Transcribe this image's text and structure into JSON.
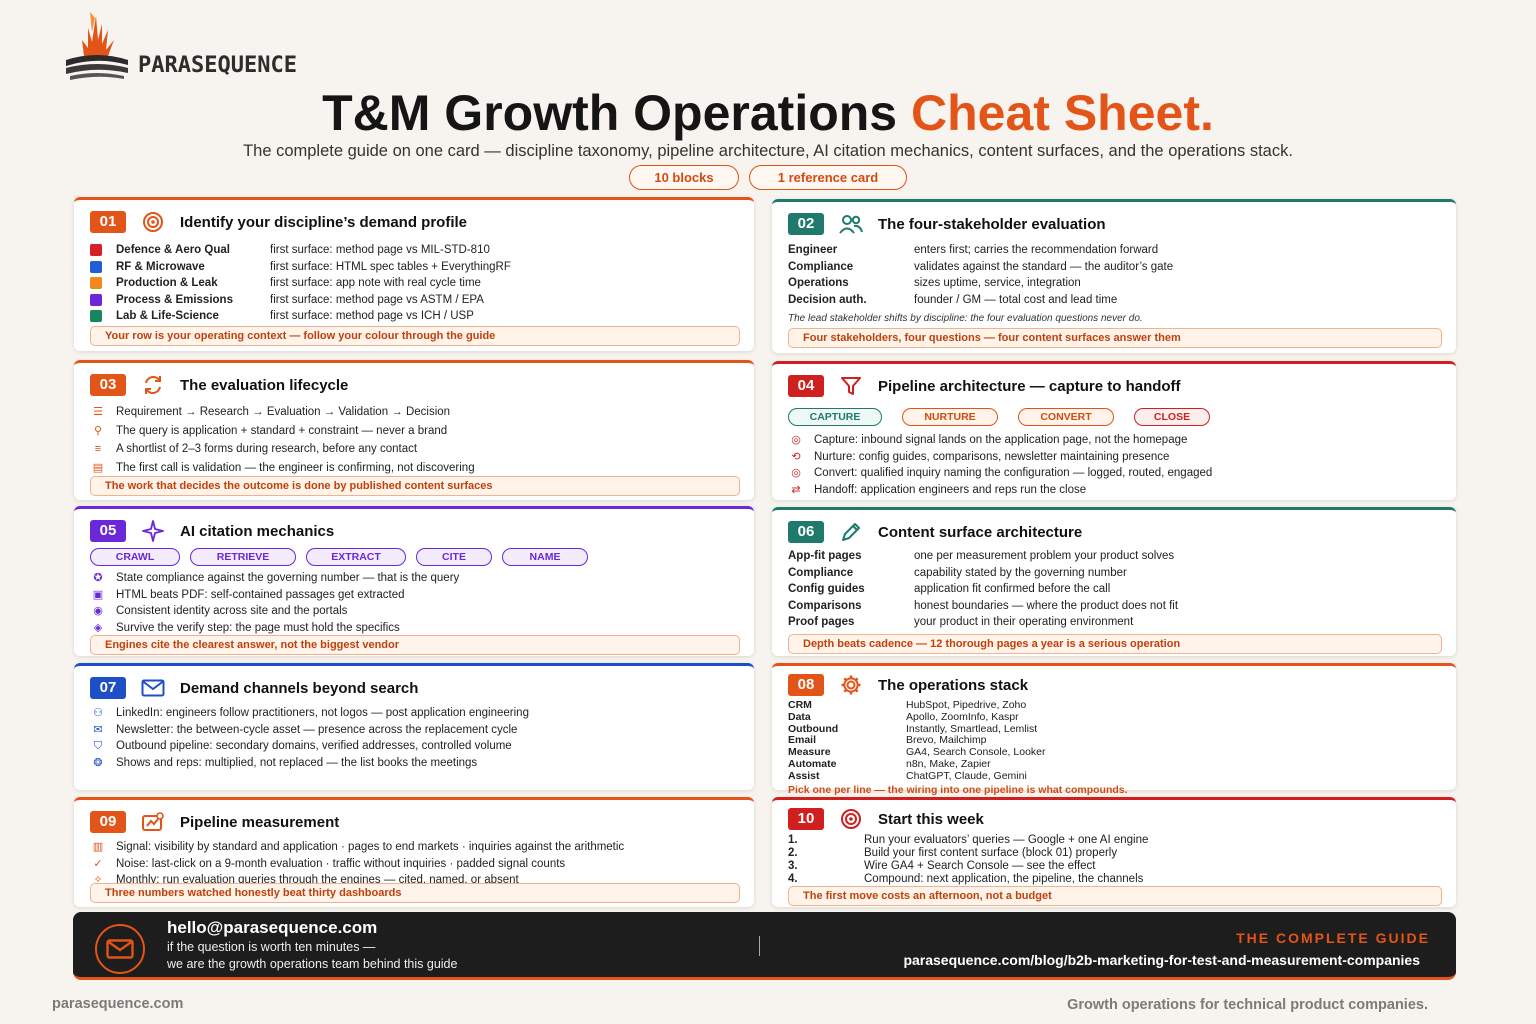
{
  "brand": {
    "name": "PARASEQUENCE"
  },
  "header": {
    "title_main": "T&M Growth Operations",
    "title_accent": "Cheat Sheet.",
    "subtitle": "The complete guide on one card — discipline taxonomy, pipeline architecture, AI citation mechanics, content surfaces, and the operations stack.",
    "pills": [
      "10 blocks",
      "1 reference card"
    ]
  },
  "colors": {
    "accent": "#e25417",
    "teal": "#1f7a6d",
    "purple": "#6a28d8",
    "blue": "#1e4fc7",
    "red": "#d01f1f"
  },
  "blocks": {
    "b01": {
      "num": "01",
      "title": "Identify your discipline’s demand profile",
      "rows": [
        {
          "k": "Defence & Aero Qual",
          "v": "first surface: method page vs MIL-STD-810",
          "color": "#d61f26"
        },
        {
          "k": "RF & Microwave",
          "v": "first surface: HTML spec tables + EverythingRF",
          "color": "#1f5fd6"
        },
        {
          "k": "Production & Leak",
          "v": "first surface: app note with real cycle time",
          "color": "#f08a1c"
        },
        {
          "k": "Process & Emissions",
          "v": "first surface: method page vs ASTM / EPA",
          "color": "#6a28d8"
        },
        {
          "k": "Lab & Life-Science",
          "v": "first surface: method page vs ICH / USP",
          "color": "#17855e"
        }
      ],
      "callout": "Your row is your operating context — follow your colour through the guide"
    },
    "b02": {
      "num": "02",
      "title": "The four-stakeholder evaluation",
      "rows": [
        {
          "k": "Engineer",
          "v": "enters first; carries the recommendation forward"
        },
        {
          "k": "Compliance",
          "v": "validates against the standard — the auditor’s gate"
        },
        {
          "k": "Operations",
          "v": "sizes uptime, service, integration"
        },
        {
          "k": "Decision auth.",
          "v": "founder / GM — total cost and lead time"
        }
      ],
      "note": "The lead stakeholder shifts by discipline: the four evaluation questions never do.",
      "callout": "Four stakeholders, four questions — four content surfaces answer them"
    },
    "b03": {
      "num": "03",
      "title": "The evaluation lifecycle",
      "rows": [
        "Requirement → Research → Evaluation → Validation → Decision",
        "The query is application + standard + constraint — never a brand",
        "A shortlist of 2–3 forms during research, before any contact",
        "The first call is validation — the engineer is confirming, not discovering"
      ],
      "callout": "The work that decides the outcome is done by published content surfaces"
    },
    "b04": {
      "num": "04",
      "title": "Pipeline architecture — capture to handoff",
      "chips": [
        "CAPTURE",
        "NURTURE",
        "CONVERT",
        "CLOSE"
      ],
      "rows": [
        "Capture: inbound signal lands on the application page, not the homepage",
        "Nurture: config guides, comparisons, newsletter maintaining presence",
        "Convert: qualified inquiry naming the configuration — logged, routed, engaged",
        "Handoff: application engineers and reps run the close"
      ]
    },
    "b05": {
      "num": "05",
      "title": "AI citation mechanics",
      "chips": [
        "CRAWL",
        "RETRIEVE",
        "EXTRACT",
        "CITE",
        "NAME"
      ],
      "rows": [
        "State compliance against the governing number — that is the query",
        "HTML beats PDF: self-contained passages get extracted",
        "Consistent identity across site and the portals",
        "Survive the verify step: the page must hold the specifics"
      ],
      "callout": "Engines cite the clearest answer, not the biggest vendor"
    },
    "b06": {
      "num": "06",
      "title": "Content surface architecture",
      "rows": [
        {
          "k": "App-fit pages",
          "v": "one per measurement problem your product solves"
        },
        {
          "k": "Compliance",
          "v": "capability stated by the governing number"
        },
        {
          "k": "Config guides",
          "v": "application fit confirmed before the call"
        },
        {
          "k": "Comparisons",
          "v": "honest boundaries — where the product does not fit"
        },
        {
          "k": "Proof pages",
          "v": "your product in their operating environment"
        }
      ],
      "callout": "Depth beats cadence — 12 thorough pages a year is a serious operation"
    },
    "b07": {
      "num": "07",
      "title": "Demand channels beyond search",
      "rows": [
        "LinkedIn: engineers follow practitioners, not logos — post application engineering",
        "Newsletter: the between-cycle asset — presence across the replacement cycle",
        "Outbound pipeline: secondary domains, verified addresses, controlled volume",
        "Shows and reps: multiplied, not replaced — the list books the meetings"
      ]
    },
    "b08": {
      "num": "08",
      "title": "The operations stack",
      "rows": [
        {
          "k": "CRM",
          "v": "HubSpot, Pipedrive, Zoho"
        },
        {
          "k": "Data",
          "v": "Apollo, ZoomInfo, Kaspr"
        },
        {
          "k": "Outbound",
          "v": "Instantly, Smartlead, Lemlist"
        },
        {
          "k": "Email",
          "v": "Brevo, Mailchimp"
        },
        {
          "k": "Measure",
          "v": "GA4, Search Console, Looker"
        },
        {
          "k": "Automate",
          "v": "n8n, Make, Zapier"
        },
        {
          "k": "Assist",
          "v": "ChatGPT, Claude, Gemini"
        }
      ],
      "callout": "Pick one per line — the wiring into one pipeline is what compounds."
    },
    "b09": {
      "num": "09",
      "title": "Pipeline measurement",
      "rows": [
        "Signal: visibility by standard and application  ·  pages to end markets  ·  inquiries against the arithmetic",
        "Noise: last-click on a 9-month evaluation  ·  traffic without inquiries  ·  padded signal counts",
        "Monthly: run evaluation queries through the engines — cited, named, or absent"
      ],
      "callout": "Three numbers watched honestly beat thirty dashboards"
    },
    "b10": {
      "num": "10",
      "title": "Start this week",
      "rows": [
        {
          "k": "1.",
          "v": "Run your evaluators’ queries — Google + one AI engine"
        },
        {
          "k": "2.",
          "v": "Build your first content surface (block 01) properly"
        },
        {
          "k": "3.",
          "v": "Wire GA4 + Search Console — see the effect"
        },
        {
          "k": "4.",
          "v": "Compound: next application, the pipeline, the channels"
        }
      ],
      "callout": "The first move costs an afternoon, not a budget"
    }
  },
  "footer": {
    "email": "hello@parasequence.com",
    "line1": "if the question is worth ten minutes —",
    "line2": "we are the growth operations team behind this guide",
    "guide_label": "THE COMPLETE GUIDE",
    "url": "parasequence.com/blog/b2b-marketing-for-test-and-measurement-companies"
  },
  "bottom": {
    "left": "parasequence.com",
    "right": "Growth operations for technical product companies."
  }
}
